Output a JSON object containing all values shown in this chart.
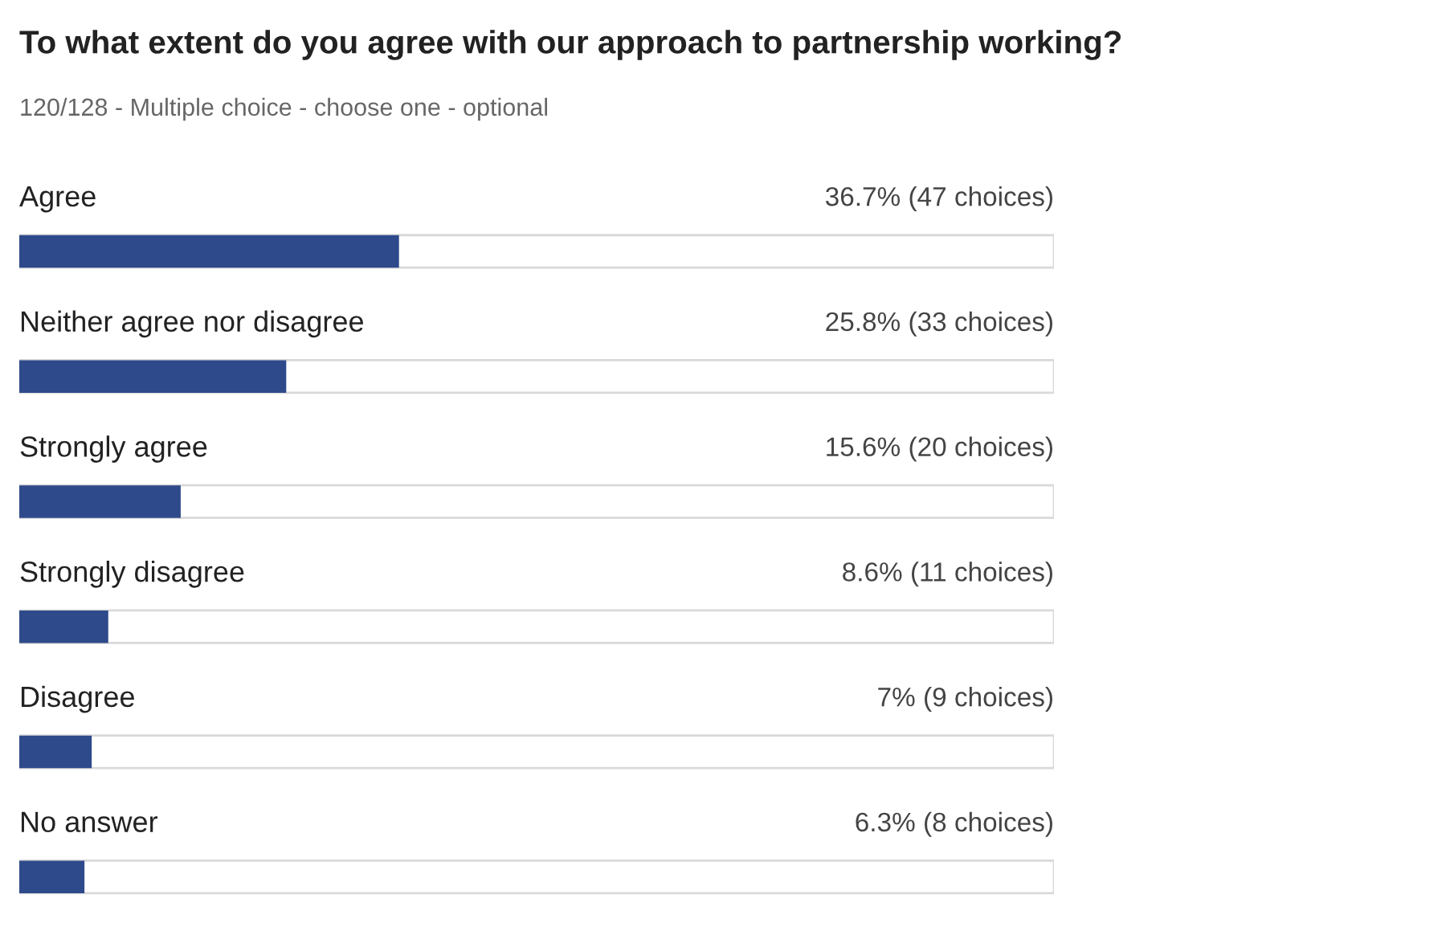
{
  "chart_data": {
    "type": "bar",
    "orientation": "horizontal",
    "title": "To what extent do you agree with our approach to partnership working?",
    "subtitle": "120/128 - Multiple choice - choose one - optional",
    "categories": [
      "Agree",
      "Neither agree nor disagree",
      "Strongly agree",
      "Strongly disagree",
      "Disagree",
      "No answer"
    ],
    "values": [
      36.7,
      25.8,
      15.6,
      8.6,
      7,
      6.3
    ],
    "value_labels": [
      "36.7% (47 choices)",
      "25.8% (33 choices)",
      "15.6% (20 choices)",
      "8.6% (11 choices)",
      "7% (9 choices)",
      "6.3% (8 choices)"
    ],
    "color": "#2e4a8b",
    "xlim": [
      0,
      100
    ],
    "tick_labels": false
  }
}
